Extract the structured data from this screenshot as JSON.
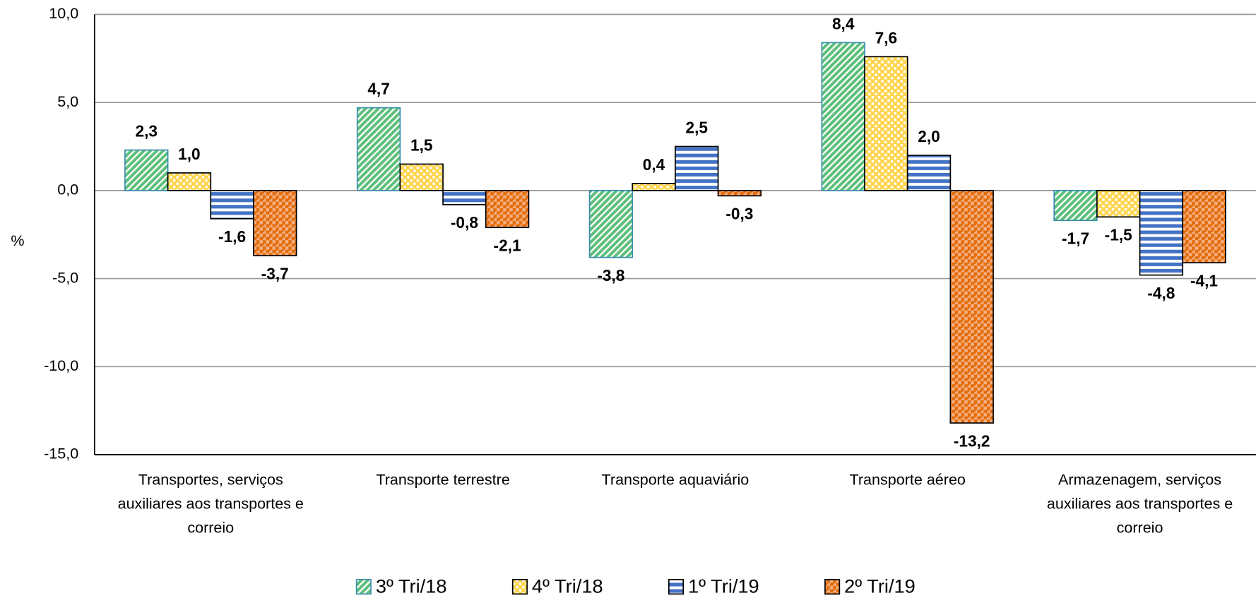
{
  "chart_data": {
    "type": "bar",
    "y_label": "%",
    "categories": [
      "Transportes, serviços auxiliares aos transportes e correio",
      "Transporte terrestre",
      "Transporte aquaviário",
      "Transporte aéreo",
      "Armazenagem, serviços auxiliares aos transportes e correio"
    ],
    "series": [
      {
        "name": "3º Tri/18",
        "color": "#5cbf7a",
        "values": [
          2.3,
          4.7,
          -3.8,
          8.4,
          -1.7
        ],
        "value_labels": [
          "2,3",
          "4,7",
          "-3,8",
          "8,4",
          "-1,7"
        ]
      },
      {
        "name": "4º Tri/18",
        "color": "#ffd54f",
        "values": [
          1.0,
          1.5,
          0.4,
          7.6,
          -1.5
        ],
        "value_labels": [
          "1,0",
          "1,5",
          "0,4",
          "7,6",
          "-1,5"
        ]
      },
      {
        "name": "1º Tri/19",
        "color": "#4472c4",
        "values": [
          -1.6,
          -0.8,
          2.5,
          2.0,
          -4.8
        ],
        "value_labels": [
          "-1,6",
          "-0,8",
          "2,5",
          "2,0",
          "-4,8"
        ]
      },
      {
        "name": "2º Tri/19",
        "color": "#e46c0a",
        "values": [
          -3.7,
          -2.1,
          -0.3,
          -13.2,
          -4.1
        ],
        "value_labels": [
          "-3,7",
          "-2,1",
          "-0,3",
          "-13,2",
          "-4,1"
        ]
      }
    ],
    "ylim": [
      -15,
      10
    ],
    "yticks": [
      {
        "value": -15,
        "label": "-15,0"
      },
      {
        "value": -10,
        "label": "-10,0"
      },
      {
        "value": -5,
        "label": "-5,0"
      },
      {
        "value": 0,
        "label": "0,0"
      },
      {
        "value": 5,
        "label": "5,0"
      },
      {
        "value": 10,
        "label": "10,0"
      }
    ],
    "grid": true,
    "legend": "bottom"
  }
}
